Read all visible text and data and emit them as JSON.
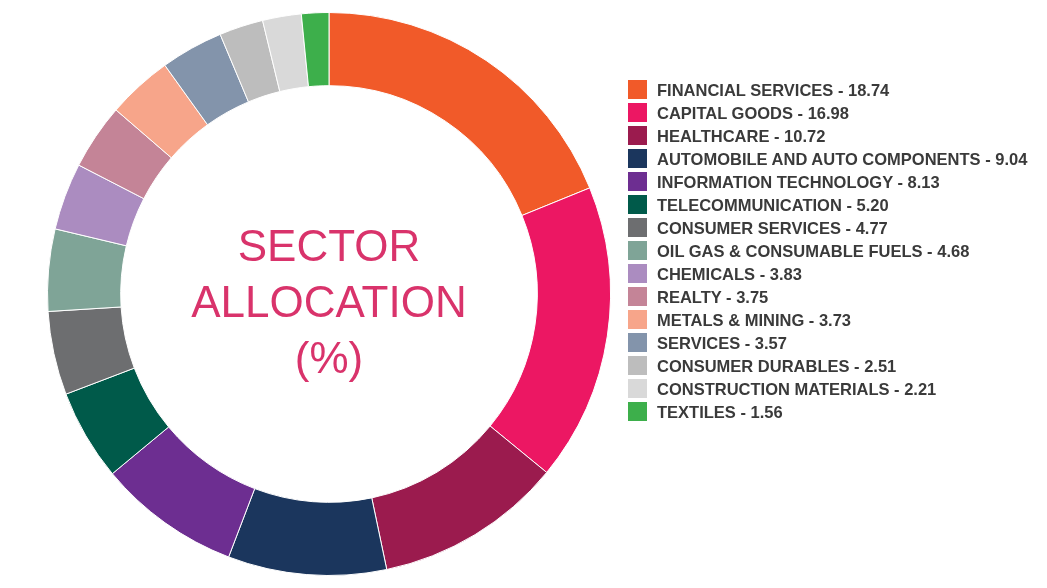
{
  "chart_data": {
    "type": "donut",
    "title": "SECTOR ALLOCATION (%)",
    "categories": [
      "FINANCIAL SERVICES",
      "CAPITAL GOODS",
      "HEALTHCARE",
      "AUTOMOBILE AND AUTO COMPONENTS",
      "INFORMATION TECHNOLOGY",
      "TELECOMMUNICATION",
      "CONSUMER SERVICES",
      "OIL GAS & CONSUMABLE FUELS",
      "CHEMICALS",
      "REALTY",
      "METALS & MINING",
      "SERVICES",
      "CONSUMER DURABLES",
      "CONSTRUCTION MATERIALS",
      "TEXTILES"
    ],
    "values": [
      18.74,
      16.98,
      10.72,
      9.04,
      8.13,
      5.2,
      4.77,
      4.68,
      3.83,
      3.75,
      3.73,
      3.57,
      2.51,
      2.21,
      1.56
    ],
    "value_labels": [
      "18.74",
      "16.98",
      "10.72",
      "9.04",
      "8.13",
      "5.20",
      "4.77",
      "4.68",
      "3.83",
      "3.75",
      "3.73",
      "3.57",
      "2.51",
      "2.21",
      "1.56"
    ],
    "colors": [
      "#f15a29",
      "#ec1763",
      "#9b1b4e",
      "#1b365d",
      "#6d2e91",
      "#005a4a",
      "#6d6e70",
      "#7fa497",
      "#ab8cc0",
      "#c48497",
      "#f7a58a",
      "#8394ab",
      "#bdbdbd",
      "#d9d9d9",
      "#3daf4b"
    ],
    "legend": "right"
  }
}
